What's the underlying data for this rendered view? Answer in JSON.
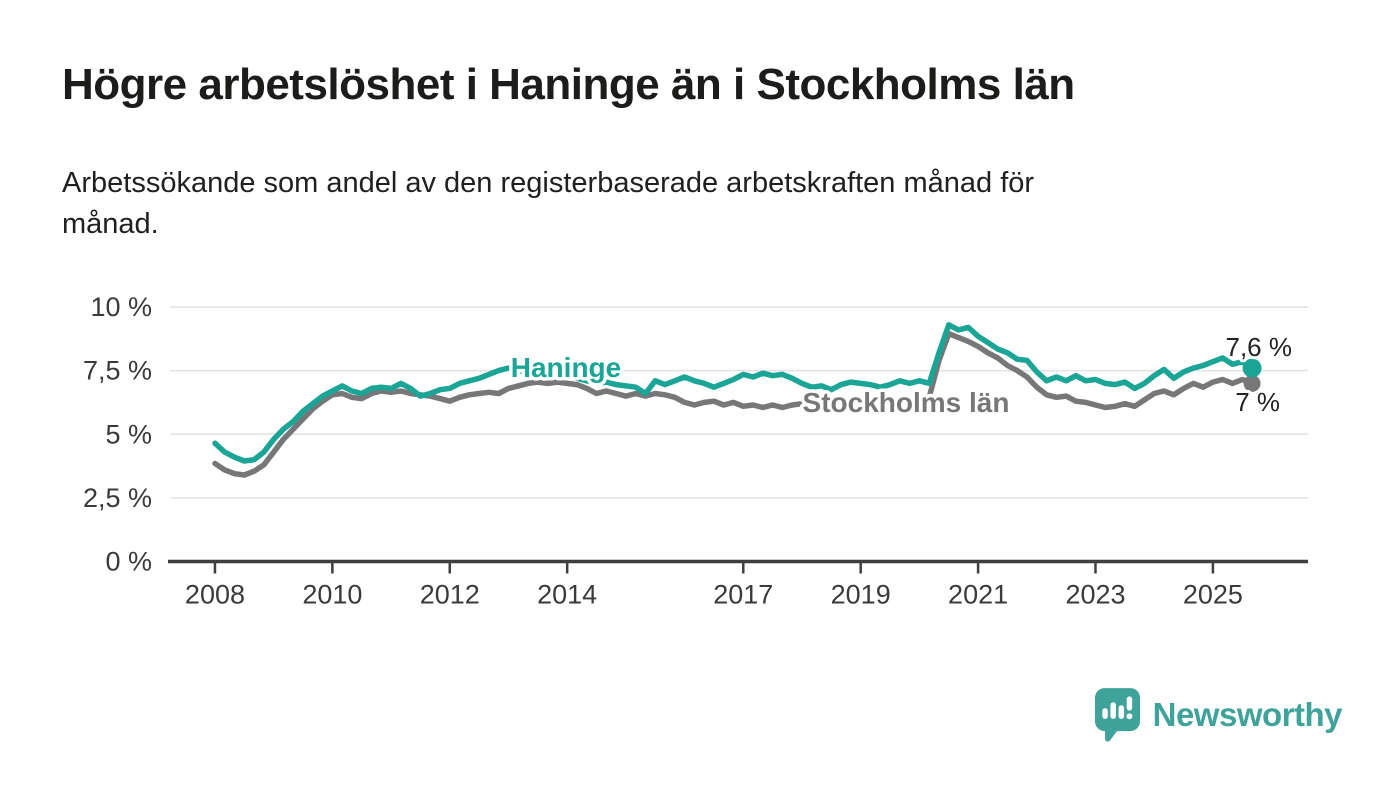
{
  "header": {
    "title": "Högre arbetslöshet i Haninge än i Stockholms län",
    "subtitle_lines": [
      "Arbetssökande som andel av den registerbaserade arbetskraften månad för",
      "månad."
    ]
  },
  "branding": {
    "logo_text": "Newsworthy",
    "logo_icon": "bar-chart-speech-bubble-icon",
    "brand_color": "#3fa29b"
  },
  "colors": {
    "haninge_teal": "#1ba596",
    "stockholm_gray": "#777779",
    "axis": "#3f3f3f",
    "gridline": "#e2e2e2",
    "text_dark": "#1c1c1a"
  },
  "chart_data": {
    "type": "line",
    "x_unit": "year (monthly data, sampled ~bimonthly)",
    "x_start": 2008.0,
    "x_step_years": 0.16667,
    "xlim": [
      2007.2,
      2026.62
    ],
    "ylim": [
      0,
      10
    ],
    "grid": "horizontal",
    "legend_position": "inline-labels",
    "xticks": [
      2008,
      2010,
      2012,
      2014,
      2017,
      2019,
      2021,
      2023,
      2025
    ],
    "yticks": [
      {
        "value": 0,
        "label": "0 %"
      },
      {
        "value": 2.5,
        "label": "2,5 %"
      },
      {
        "value": 5,
        "label": "5 %"
      },
      {
        "value": 7.5,
        "label": "7,5 %"
      },
      {
        "value": 10,
        "label": "10 %"
      }
    ],
    "series": [
      {
        "name": "Haninge",
        "color": "#1ba596",
        "end_label": "7,6 %",
        "end_value": 7.6,
        "values": [
          4.65,
          4.3,
          4.1,
          3.95,
          4.0,
          4.3,
          4.8,
          5.2,
          5.5,
          5.9,
          6.2,
          6.5,
          6.7,
          6.9,
          6.7,
          6.6,
          6.8,
          6.85,
          6.8,
          7.0,
          6.8,
          6.5,
          6.6,
          6.75,
          6.8,
          7.0,
          7.1,
          7.2,
          7.35,
          7.5,
          7.6,
          7.5,
          7.45,
          7.4,
          7.45,
          7.35,
          7.3,
          7.2,
          7.1,
          7.0,
          7.05,
          6.95,
          6.9,
          6.85,
          6.6,
          7.1,
          6.95,
          7.1,
          7.25,
          7.1,
          7.0,
          6.85,
          7.0,
          7.15,
          7.35,
          7.25,
          7.4,
          7.3,
          7.35,
          7.2,
          7.0,
          6.85,
          6.9,
          6.75,
          6.95,
          7.05,
          7.0,
          6.95,
          6.85,
          6.95,
          7.1,
          7.0,
          7.1,
          7.0,
          8.2,
          9.3,
          9.1,
          9.2,
          8.85,
          8.6,
          8.35,
          8.2,
          7.95,
          7.9,
          7.45,
          7.1,
          7.25,
          7.1,
          7.3,
          7.1,
          7.15,
          7.0,
          6.95,
          7.05,
          6.8,
          7.0,
          7.3,
          7.55,
          7.2,
          7.45,
          7.6,
          7.7,
          7.85,
          8.0,
          7.75,
          7.85,
          7.6
        ]
      },
      {
        "name": "Stockholms län",
        "color": "#777779",
        "end_label": "7 %",
        "end_value": 7.0,
        "values": [
          3.85,
          3.6,
          3.45,
          3.4,
          3.55,
          3.8,
          4.3,
          4.8,
          5.2,
          5.6,
          6.0,
          6.3,
          6.55,
          6.6,
          6.45,
          6.4,
          6.6,
          6.7,
          6.65,
          6.7,
          6.6,
          6.55,
          6.5,
          6.4,
          6.3,
          6.45,
          6.55,
          6.6,
          6.65,
          6.6,
          6.8,
          6.9,
          7.0,
          7.05,
          7.0,
          7.05,
          7.0,
          6.95,
          6.8,
          6.6,
          6.7,
          6.6,
          6.5,
          6.6,
          6.5,
          6.6,
          6.55,
          6.45,
          6.25,
          6.15,
          6.25,
          6.3,
          6.15,
          6.25,
          6.1,
          6.15,
          6.05,
          6.15,
          6.05,
          6.15,
          6.2,
          6.15,
          6.25,
          6.2,
          6.3,
          6.25,
          6.3,
          6.25,
          6.3,
          6.35,
          6.3,
          6.4,
          6.4,
          6.45,
          7.9,
          8.95,
          8.8,
          8.65,
          8.45,
          8.2,
          8.0,
          7.7,
          7.5,
          7.25,
          6.85,
          6.55,
          6.45,
          6.5,
          6.3,
          6.25,
          6.15,
          6.05,
          6.1,
          6.2,
          6.1,
          6.35,
          6.6,
          6.7,
          6.55,
          6.8,
          7.0,
          6.85,
          7.05,
          7.15,
          7.0,
          7.15,
          7.0
        ]
      }
    ]
  }
}
